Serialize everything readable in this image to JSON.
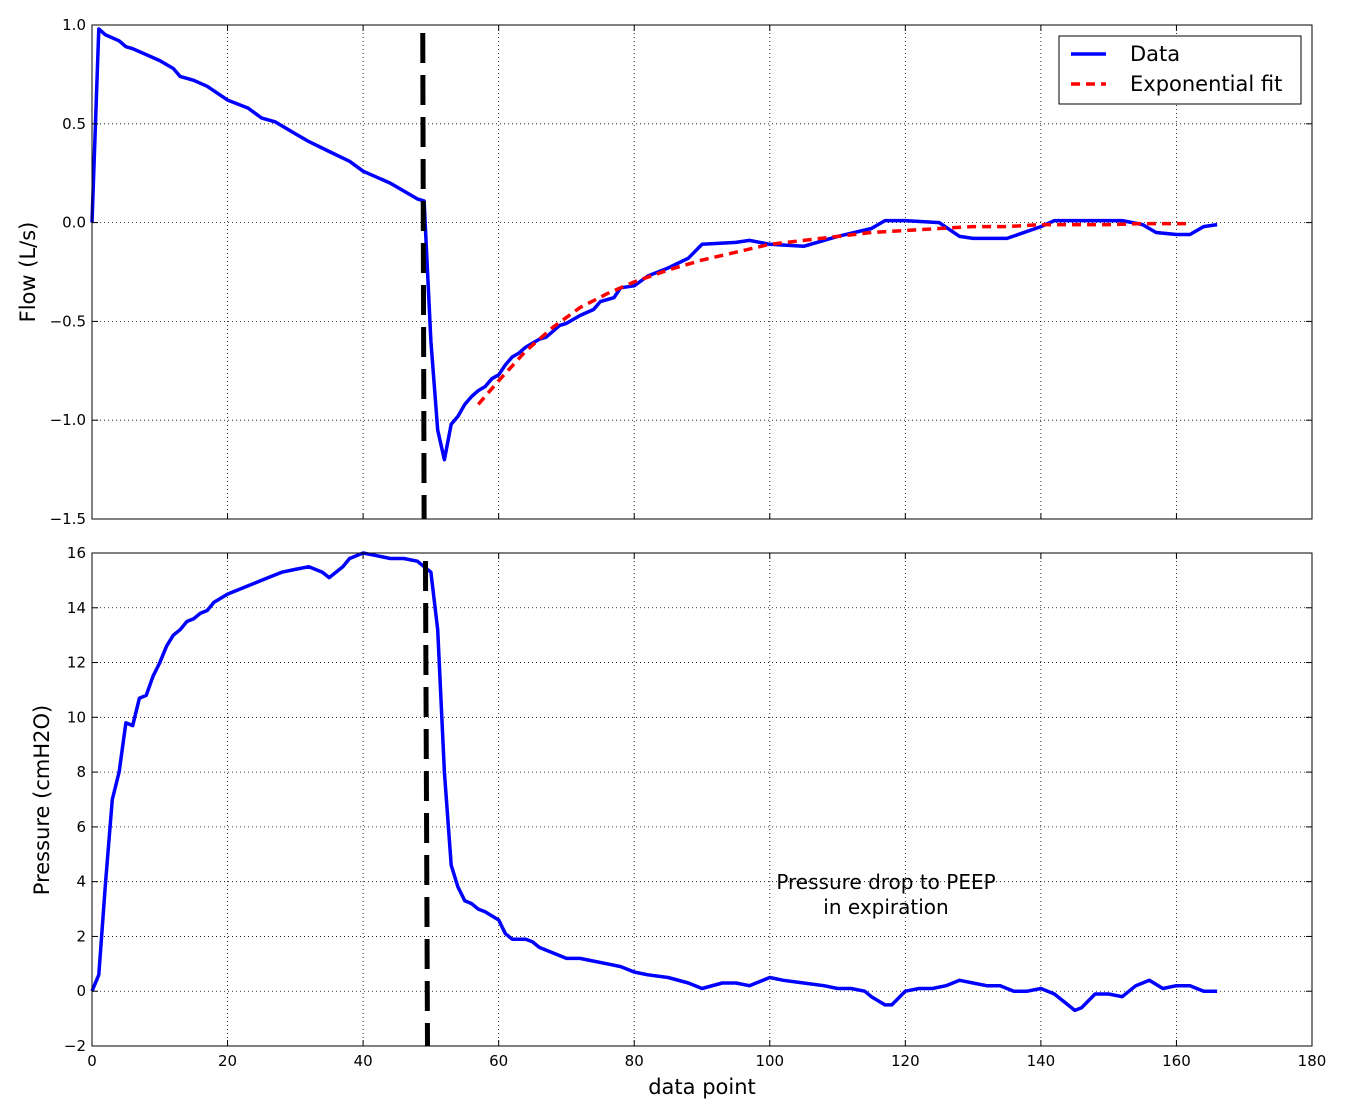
{
  "chart_data": [
    {
      "type": "line",
      "panel": "top",
      "ylabel": "Flow (L/s)",
      "xlabel": "",
      "xlim": [
        0,
        180
      ],
      "ylim": [
        -1.5,
        1.0
      ],
      "grid": true,
      "legend_position": "top-right",
      "x_ticks": [
        0,
        20,
        40,
        60,
        80,
        100,
        120,
        140,
        160,
        180
      ],
      "y_ticks": [
        -1.5,
        -1.0,
        -0.5,
        0.0,
        0.5,
        1.0
      ],
      "y_tick_labels": [
        "−1.5",
        "−1.0",
        "−0.5",
        "0.0",
        "0.5",
        "1.0"
      ],
      "series": [
        {
          "name": "Data",
          "color": "#0000ff",
          "style": "solid",
          "x": [
            0,
            1,
            2,
            4,
            5,
            6,
            8,
            10,
            12,
            13,
            15,
            17,
            20,
            23,
            25,
            27,
            30,
            32,
            35,
            38,
            40,
            42,
            44,
            46,
            48,
            49,
            50,
            51,
            52,
            53,
            54,
            55,
            56,
            57,
            58,
            59,
            60,
            61,
            62,
            63,
            64,
            65,
            66,
            67,
            68,
            69,
            70,
            72,
            74,
            75,
            77,
            78,
            80,
            82,
            85,
            88,
            90,
            95,
            97,
            100,
            105,
            110,
            115,
            117,
            120,
            125,
            128,
            130,
            135,
            140,
            142,
            145,
            150,
            152,
            155,
            157,
            160,
            162,
            164,
            166
          ],
          "y": [
            0.0,
            0.98,
            0.95,
            0.92,
            0.89,
            0.88,
            0.85,
            0.82,
            0.78,
            0.74,
            0.72,
            0.69,
            0.62,
            0.58,
            0.53,
            0.51,
            0.45,
            0.41,
            0.36,
            0.31,
            0.26,
            0.23,
            0.2,
            0.16,
            0.12,
            0.11,
            -0.6,
            -1.05,
            -1.2,
            -1.02,
            -0.98,
            -0.92,
            -0.88,
            -0.85,
            -0.83,
            -0.79,
            -0.77,
            -0.72,
            -0.68,
            -0.66,
            -0.63,
            -0.61,
            -0.59,
            -0.58,
            -0.55,
            -0.52,
            -0.51,
            -0.47,
            -0.44,
            -0.4,
            -0.38,
            -0.33,
            -0.32,
            -0.27,
            -0.23,
            -0.18,
            -0.11,
            -0.1,
            -0.09,
            -0.11,
            -0.12,
            -0.07,
            -0.03,
            0.01,
            0.01,
            0.0,
            -0.07,
            -0.08,
            -0.08,
            -0.02,
            0.01,
            0.01,
            0.01,
            0.01,
            -0.01,
            -0.05,
            -0.06,
            -0.06,
            -0.02,
            -0.01
          ]
        },
        {
          "name": "Exponential fit",
          "color": "#ff0000",
          "style": "dashed",
          "x": [
            57,
            60,
            64,
            68,
            72,
            76,
            80,
            85,
            90,
            95,
            100,
            105,
            110,
            115,
            120,
            125,
            130,
            135,
            140,
            145,
            150,
            155,
            160,
            162
          ],
          "y": [
            -0.92,
            -0.8,
            -0.65,
            -0.53,
            -0.43,
            -0.36,
            -0.3,
            -0.24,
            -0.19,
            -0.15,
            -0.11,
            -0.09,
            -0.07,
            -0.05,
            -0.04,
            -0.03,
            -0.02,
            -0.02,
            -0.01,
            -0.01,
            -0.01,
            -0.005,
            -0.005,
            -0.005
          ]
        }
      ],
      "vertical_marker": {
        "x_top": 48.8,
        "x_bottom": 49.0,
        "color": "#000000",
        "style": "dashed"
      }
    },
    {
      "type": "line",
      "panel": "bottom",
      "ylabel": "Pressure (cmH2O)",
      "xlabel": "data point",
      "xlim": [
        0,
        180
      ],
      "ylim": [
        -2,
        16
      ],
      "grid": true,
      "x_ticks": [
        0,
        20,
        40,
        60,
        80,
        100,
        120,
        140,
        160,
        180
      ],
      "y_ticks": [
        -2,
        0,
        2,
        4,
        6,
        8,
        10,
        12,
        14,
        16
      ],
      "y_tick_labels": [
        "−2",
        "0",
        "2",
        "4",
        "6",
        "8",
        "10",
        "12",
        "14",
        "16"
      ],
      "series": [
        {
          "name": "",
          "color": "#0000ff",
          "style": "solid",
          "x": [
            0,
            1,
            2,
            3,
            4,
            5,
            6,
            7,
            8,
            9,
            10,
            11,
            12,
            13,
            14,
            15,
            16,
            17,
            18,
            20,
            22,
            24,
            26,
            28,
            30,
            32,
            34,
            35,
            37,
            38,
            39,
            40,
            42,
            44,
            46,
            48,
            49,
            50,
            51,
            52,
            53,
            54,
            55,
            56,
            57,
            58,
            60,
            61,
            62,
            64,
            65,
            66,
            68,
            70,
            72,
            74,
            76,
            78,
            80,
            82,
            85,
            88,
            90,
            93,
            95,
            97,
            99,
            100,
            102,
            105,
            108,
            110,
            112,
            114,
            115,
            117,
            118,
            120,
            122,
            124,
            126,
            128,
            130,
            132,
            134,
            136,
            138,
            140,
            142,
            144,
            145,
            146,
            148,
            150,
            152,
            154,
            155,
            156,
            158,
            160,
            162,
            164,
            166
          ],
          "y": [
            0.0,
            0.6,
            4.0,
            7.0,
            8.0,
            9.8,
            9.7,
            10.7,
            10.8,
            11.5,
            12.0,
            12.6,
            13.0,
            13.2,
            13.5,
            13.6,
            13.8,
            13.9,
            14.2,
            14.5,
            14.7,
            14.9,
            15.1,
            15.3,
            15.4,
            15.5,
            15.3,
            15.1,
            15.5,
            15.8,
            15.9,
            16.0,
            15.9,
            15.8,
            15.8,
            15.7,
            15.5,
            15.3,
            13.2,
            8.0,
            4.6,
            3.8,
            3.3,
            3.2,
            3.0,
            2.9,
            2.6,
            2.1,
            1.9,
            1.9,
            1.8,
            1.6,
            1.4,
            1.2,
            1.2,
            1.1,
            1.0,
            0.9,
            0.7,
            0.6,
            0.5,
            0.3,
            0.1,
            0.3,
            0.3,
            0.2,
            0.4,
            0.5,
            0.4,
            0.3,
            0.2,
            0.1,
            0.1,
            0.0,
            -0.2,
            -0.5,
            -0.5,
            0.0,
            0.1,
            0.1,
            0.2,
            0.4,
            0.3,
            0.2,
            0.2,
            0.0,
            0.0,
            0.1,
            -0.1,
            -0.5,
            -0.7,
            -0.6,
            -0.1,
            -0.1,
            -0.2,
            0.2,
            0.3,
            0.4,
            0.1,
            0.2,
            0.2,
            0.0,
            0.0
          ]
        }
      ],
      "vertical_marker": {
        "x_top": 49.2,
        "x_bottom": 49.5,
        "color": "#000000",
        "style": "dashed"
      },
      "annotation": {
        "lines": [
          "Pressure drop to PEEP",
          "in expiration"
        ],
        "x": 116,
        "y": 3.5
      }
    }
  ]
}
